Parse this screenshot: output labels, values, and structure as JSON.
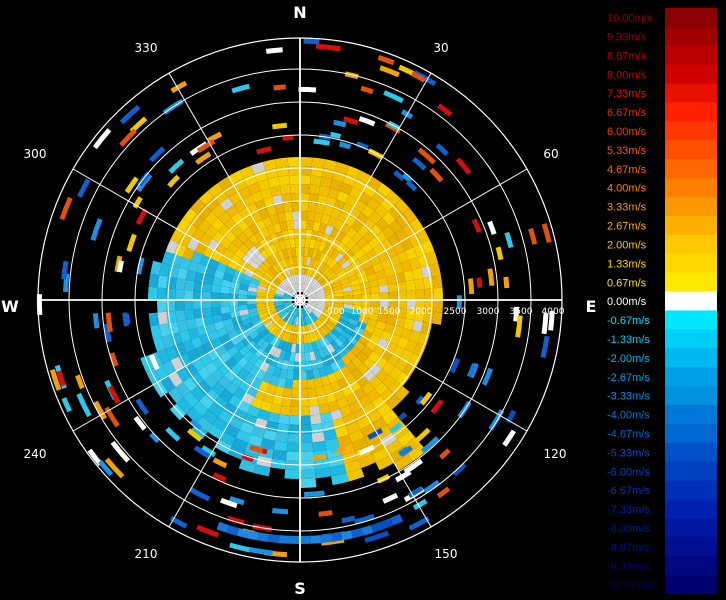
{
  "compass": {
    "north": "N",
    "south": "S",
    "east": "E",
    "west": "W"
  },
  "bearing_labels": [
    "30",
    "60",
    "120",
    "150",
    "210",
    "240",
    "300",
    "330"
  ],
  "range_labels": [
    "500",
    "1000",
    "1500",
    "2000",
    "2500",
    "3000",
    "3500",
    "4000"
  ],
  "legend": [
    {
      "label": "10.00m/s",
      "color": "#8b0000"
    },
    {
      "label": "9.33m/s",
      "color": "#a00000"
    },
    {
      "label": "8.67m/s",
      "color": "#b80000"
    },
    {
      "label": "8.00m/s",
      "color": "#d00000"
    },
    {
      "label": "7.33m/s",
      "color": "#e81000"
    },
    {
      "label": "6.67m/s",
      "color": "#ff2000"
    },
    {
      "label": "6.00m/s",
      "color": "#ff3800"
    },
    {
      "label": "5.33m/s",
      "color": "#ff5000"
    },
    {
      "label": "4.67m/s",
      "color": "#ff6800"
    },
    {
      "label": "4.00m/s",
      "color": "#ff8000"
    },
    {
      "label": "3.33m/s",
      "color": "#ff9800"
    },
    {
      "label": "2.67m/s",
      "color": "#ffb000"
    },
    {
      "label": "2.00m/s",
      "color": "#ffc800"
    },
    {
      "label": "1.33m/s",
      "color": "#ffd800"
    },
    {
      "label": "0.67m/s",
      "color": "#ffe800"
    },
    {
      "label": "0.00m/s",
      "color": "#ffffff"
    },
    {
      "label": "-0.67m/s",
      "color": "#00e8ff"
    },
    {
      "label": "-1.33m/s",
      "color": "#00d0f8"
    },
    {
      "label": "-2.00m/s",
      "color": "#00b8f0"
    },
    {
      "label": "-2.67m/s",
      "color": "#00a0e8"
    },
    {
      "label": "-3.33m/s",
      "color": "#0090e0"
    },
    {
      "label": "-4.00m/s",
      "color": "#0078d8"
    },
    {
      "label": "-4.67m/s",
      "color": "#0068d0"
    },
    {
      "label": "-5.33m/s",
      "color": "#0050c8"
    },
    {
      "label": "-6.00m/s",
      "color": "#0040c0"
    },
    {
      "label": "-6.67m/s",
      "color": "#0030b8"
    },
    {
      "label": "-7.33m/s",
      "color": "#0020b0"
    },
    {
      "label": "-8.00m/s",
      "color": "#0018a0"
    },
    {
      "label": "-8.67m/s",
      "color": "#001090"
    },
    {
      "label": "-9.33m/s",
      "color": "#000880"
    },
    {
      "label": "-10.00m/s",
      "color": "#000070"
    }
  ]
}
